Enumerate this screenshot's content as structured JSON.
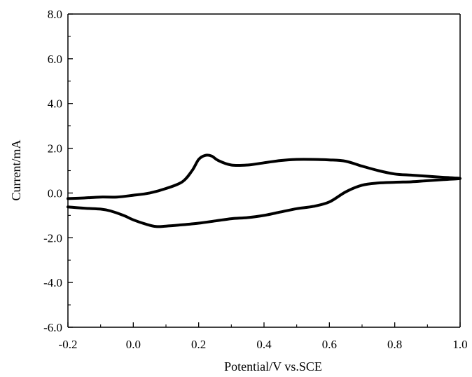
{
  "chart_data": {
    "type": "line",
    "title": "",
    "xlabel": "Potential/V vs.SCE",
    "ylabel": "Current/mA",
    "xlim": [
      -0.2,
      1.0
    ],
    "ylim": [
      -6.0,
      8.0
    ],
    "x_ticks": [
      -0.2,
      0.0,
      0.2,
      0.4,
      0.6,
      0.8,
      1.0
    ],
    "x_tick_labels": [
      "-0.2",
      "0.0",
      "0.2",
      "0.4",
      "0.6",
      "0.8",
      "1.0"
    ],
    "y_ticks": [
      -6.0,
      -4.0,
      -2.0,
      0.0,
      2.0,
      4.0,
      6.0,
      8.0
    ],
    "y_tick_labels": [
      "-6.0",
      "-4.0",
      "-2.0",
      "0.0",
      "2.0",
      "4.0",
      "6.0",
      "8.0"
    ],
    "grid": false,
    "legend": "none",
    "line_color": "#000000",
    "series": [
      {
        "points": [
          [
            -0.2,
            -0.25
          ],
          [
            -0.15,
            -0.22
          ],
          [
            -0.1,
            -0.18
          ],
          [
            -0.05,
            -0.18
          ],
          [
            0.0,
            -0.1
          ],
          [
            0.05,
            0.0
          ],
          [
            0.1,
            0.2
          ],
          [
            0.15,
            0.5
          ],
          [
            0.18,
            1.0
          ],
          [
            0.2,
            1.5
          ],
          [
            0.22,
            1.68
          ],
          [
            0.24,
            1.65
          ],
          [
            0.26,
            1.45
          ],
          [
            0.3,
            1.25
          ],
          [
            0.35,
            1.25
          ],
          [
            0.4,
            1.35
          ],
          [
            0.45,
            1.45
          ],
          [
            0.5,
            1.5
          ],
          [
            0.55,
            1.5
          ],
          [
            0.6,
            1.48
          ],
          [
            0.65,
            1.42
          ],
          [
            0.7,
            1.2
          ],
          [
            0.75,
            1.0
          ],
          [
            0.8,
            0.85
          ],
          [
            0.85,
            0.8
          ],
          [
            0.9,
            0.75
          ],
          [
            0.95,
            0.7
          ],
          [
            1.0,
            0.65
          ],
          [
            0.95,
            0.6
          ],
          [
            0.9,
            0.55
          ],
          [
            0.85,
            0.5
          ],
          [
            0.8,
            0.48
          ],
          [
            0.75,
            0.45
          ],
          [
            0.7,
            0.35
          ],
          [
            0.65,
            0.05
          ],
          [
            0.6,
            -0.4
          ],
          [
            0.55,
            -0.6
          ],
          [
            0.5,
            -0.7
          ],
          [
            0.45,
            -0.85
          ],
          [
            0.4,
            -1.0
          ],
          [
            0.35,
            -1.1
          ],
          [
            0.3,
            -1.15
          ],
          [
            0.25,
            -1.25
          ],
          [
            0.2,
            -1.35
          ],
          [
            0.15,
            -1.42
          ],
          [
            0.1,
            -1.48
          ],
          [
            0.07,
            -1.5
          ],
          [
            0.04,
            -1.4
          ],
          [
            0.0,
            -1.2
          ],
          [
            -0.03,
            -1.0
          ],
          [
            -0.07,
            -0.8
          ],
          [
            -0.1,
            -0.72
          ],
          [
            -0.15,
            -0.68
          ],
          [
            -0.2,
            -0.62
          ]
        ]
      }
    ]
  }
}
